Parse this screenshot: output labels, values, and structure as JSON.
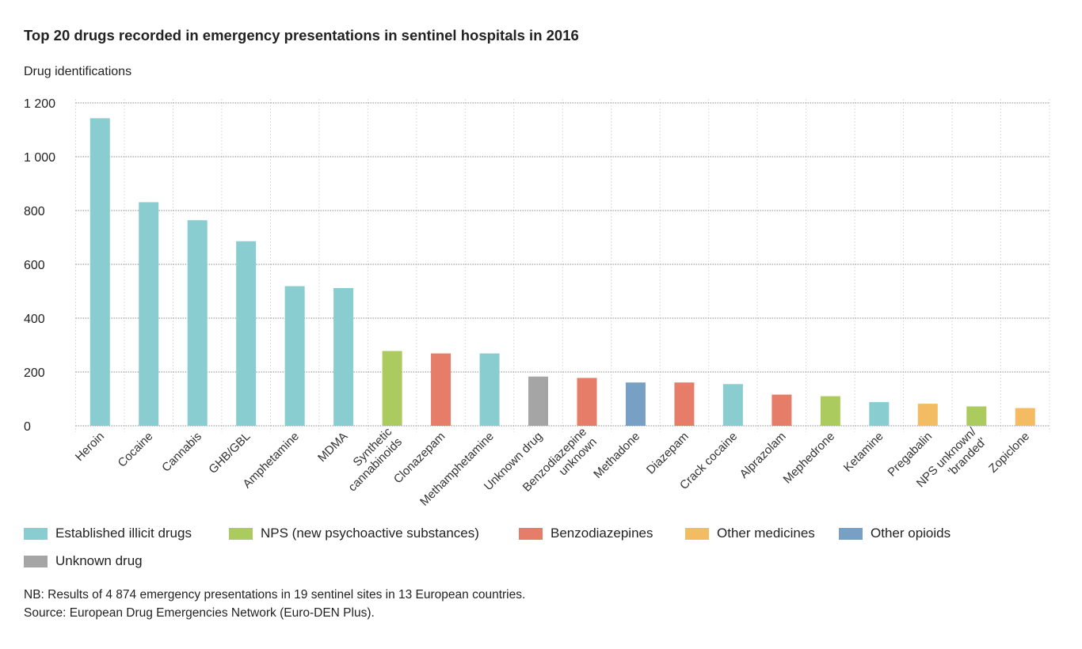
{
  "chart_data": {
    "type": "bar",
    "title": "Top 20 drugs recorded in emergency presentations in sentinel hospitals in 2016",
    "ylabel": "Drug identifications",
    "xlabel": "",
    "ylim": [
      0,
      1200
    ],
    "yticks": [
      0,
      200,
      400,
      600,
      800,
      1000,
      1200
    ],
    "ytick_labels": [
      "0",
      "200",
      "400",
      "600",
      "800",
      "1 000",
      "1 200"
    ],
    "grid": true,
    "legend_position": "bottom",
    "categories": [
      "Heroin",
      "Cocaine",
      "Cannabis",
      "GHB/GBL",
      "Amphetamine",
      "MDMA",
      "Synthetic\ncannabinoids",
      "Clonazepam",
      "Methamphetamine",
      "Unknown drug",
      "Benzodiazepine\nunknown",
      "Methadone",
      "Diazepam",
      "Crack cocaine",
      "Alprazolam",
      "Mephedrone",
      "Ketamine",
      "Pregabalin",
      "NPS unknown/\n'branded'",
      "Zopiclone"
    ],
    "values": [
      1143,
      831,
      764,
      686,
      519,
      512,
      278,
      269,
      269,
      183,
      178,
      161,
      161,
      155,
      116,
      110,
      88,
      82,
      72,
      66
    ],
    "groups": [
      0,
      0,
      0,
      0,
      0,
      0,
      1,
      2,
      0,
      5,
      2,
      4,
      2,
      0,
      2,
      1,
      0,
      3,
      1,
      3
    ],
    "legend": [
      {
        "name": "Established illicit drugs",
        "color": "#89cdd0"
      },
      {
        "name": "NPS (new psychoactive substances)",
        "color": "#abcb5f"
      },
      {
        "name": "Benzodiazepines",
        "color": "#e57d68"
      },
      {
        "name": "Other medicines",
        "color": "#f3bc62"
      },
      {
        "name": "Other opioids",
        "color": "#789fc4"
      },
      {
        "name": "Unknown drug",
        "color": "#a5a5a5"
      }
    ]
  },
  "notes": {
    "nb": "NB: Results of 4 874 emergency presentations in 19 sentinel sites in 13 European countries.",
    "source": "Source: European Drug Emergencies Network (Euro-DEN Plus)."
  }
}
